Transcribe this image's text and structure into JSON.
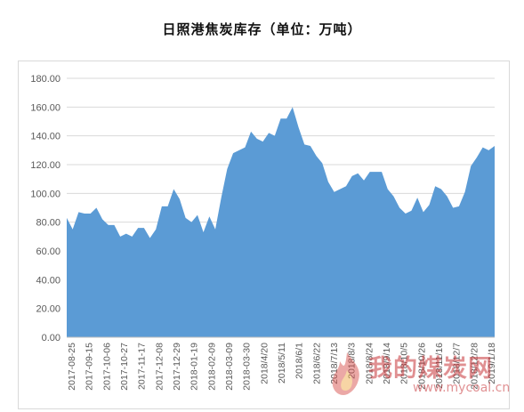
{
  "chart_data": {
    "type": "area",
    "title": "日照港焦炭库存（单位：万吨）",
    "xlabel": "",
    "ylabel": "",
    "ylim": [
      0,
      180
    ],
    "yticks": [
      "0.00",
      "20.00",
      "40.00",
      "60.00",
      "80.00",
      "100.00",
      "120.00",
      "140.00",
      "160.00",
      "180.00"
    ],
    "grid": true,
    "legend": "none",
    "color": "#5b9bd5",
    "x_tick_labels": [
      "2017-08-25",
      "2017-09-15",
      "2017-10-06",
      "2017-10-27",
      "2017-11-17",
      "2017-12-08",
      "2017-12-29",
      "2018-01-19",
      "2018-02-09",
      "2018-03-09",
      "2018-03-30",
      "2018/4/20",
      "2018/5/11",
      "2018/6/1",
      "2018/6/22",
      "2018/7/13",
      "2018/8/3",
      "2018/8/24",
      "2018/9/14",
      "2018/10/5",
      "2018/10/26",
      "2018/11/16",
      "2018/12/7",
      "2018/12/28",
      "2019/1/18"
    ],
    "series": [
      {
        "values": [
          83,
          75,
          87,
          86,
          86,
          90,
          82,
          78,
          78,
          70,
          72,
          70,
          76,
          76,
          69,
          75,
          91,
          91,
          103,
          96,
          83,
          80,
          85,
          73,
          84,
          75,
          97,
          117,
          128,
          130,
          132,
          143,
          138,
          136,
          142,
          140,
          152,
          152,
          160,
          146,
          134,
          133,
          126,
          121,
          108,
          101,
          103,
          105,
          112,
          114,
          109,
          115,
          115,
          115,
          103,
          98,
          90,
          86,
          88,
          97,
          87,
          92,
          105,
          103,
          98,
          90,
          91,
          101,
          119,
          125,
          132,
          130,
          133
        ]
      }
    ]
  },
  "watermark": {
    "text": "我的煤炭网",
    "url": "www.mycoal.cn"
  }
}
